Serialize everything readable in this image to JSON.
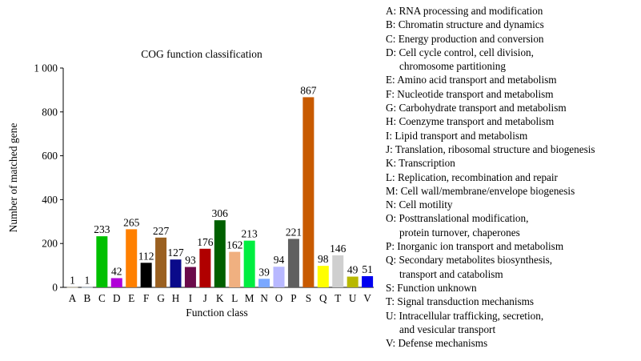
{
  "chart_data": {
    "type": "bar",
    "title": "COG function classification",
    "xlabel": "Function class",
    "ylabel": "Number of matched gene",
    "ylim": [
      0,
      1000
    ],
    "yticks": [
      0,
      200,
      400,
      600,
      800,
      1000
    ],
    "ytick_labels": [
      "0",
      "200",
      "400",
      "600",
      "800",
      "1 000"
    ],
    "grid": false,
    "legend_position": "right",
    "categories": [
      "A",
      "B",
      "C",
      "D",
      "E",
      "F",
      "G",
      "H",
      "I",
      "J",
      "K",
      "L",
      "M",
      "N",
      "O",
      "P",
      "S",
      "Q",
      "T",
      "U",
      "V"
    ],
    "values": [
      1,
      1,
      233,
      42,
      265,
      112,
      227,
      127,
      93,
      176,
      306,
      162,
      213,
      39,
      94,
      221,
      867,
      98,
      146,
      49,
      51
    ],
    "colors": [
      "#f2e3c0",
      "#c8dff0",
      "#00c000",
      "#b000d8",
      "#ff8000",
      "#000000",
      "#9a6020",
      "#0a0a8a",
      "#6a0a4a",
      "#b00000",
      "#006000",
      "#f0b080",
      "#00ee40",
      "#7aa8ff",
      "#b8b8ff",
      "#606060",
      "#c85a00",
      "#ffff00",
      "#cfcfcf",
      "#b8b800",
      "#0000f0"
    ]
  },
  "legend": [
    {
      "text": "A: RNA processing and modification"
    },
    {
      "text": "B: Chromatin structure and dynamics"
    },
    {
      "text": "C: Energy production and conversion"
    },
    {
      "text": "D: Cell cycle control, cell division,",
      "cont": "chromosome partitioning"
    },
    {
      "text": "E: Amino acid transport and metabolism"
    },
    {
      "text": "F: Nucleotide transport and metabolism"
    },
    {
      "text": "G: Carbohydrate transport and metabolism"
    },
    {
      "text": "H: Coenzyme transport and metabolism"
    },
    {
      "text": "I: Lipid transport and metabolism"
    },
    {
      "text": "J: Translation, ribosomal structure and biogenesis"
    },
    {
      "text": "K: Transcription"
    },
    {
      "text": "L: Replication, recombination and repair"
    },
    {
      "text": "M: Cell wall/membrane/envelope biogenesis"
    },
    {
      "text": "N: Cell motility"
    },
    {
      "text": "O: Posttranslational modification,",
      "cont": "protein turnover, chaperones"
    },
    {
      "text": "P: Inorganic ion transport and metabolism"
    },
    {
      "text": "Q: Secondary metabolites biosynthesis,",
      "cont": "transport and catabolism"
    },
    {
      "text": "S: Function unknown"
    },
    {
      "text": "T: Signal transduction mechanisms"
    },
    {
      "text": "U: Intracellular trafficking, secretion,",
      "cont": "and vesicular transport"
    },
    {
      "text": "V: Defense mechanisms"
    }
  ]
}
